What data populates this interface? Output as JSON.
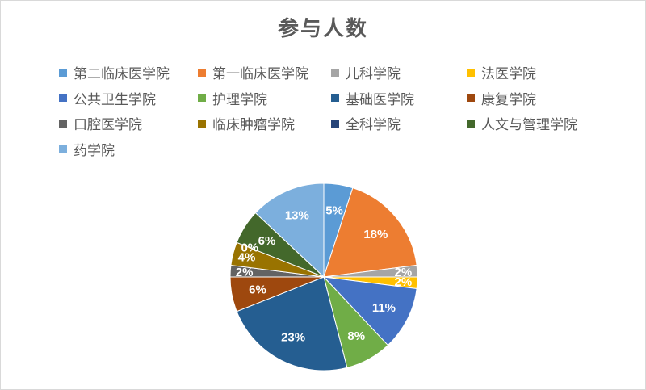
{
  "chart_data": {
    "type": "pie",
    "title": "参与人数",
    "legend_position": "top",
    "start_angle": "top, clockwise",
    "categories": [
      "第二临床医学院",
      "第一临床医学院",
      "儿科学院",
      "法医学院",
      "公共卫生学院",
      "护理学院",
      "基础医学院",
      "康复学院",
      "口腔医学院",
      "临床肿瘤学院",
      "全科学院",
      "人文与管理学院",
      "药学院"
    ],
    "values": [
      5,
      18,
      2,
      2,
      11,
      8,
      23,
      6,
      2,
      4,
      0,
      6,
      13
    ],
    "labels": [
      "5%",
      "18%",
      "2%",
      "2%",
      "11%",
      "8%",
      "23%",
      "6%",
      "2%",
      "4%",
      "0%",
      "6%",
      "13%"
    ],
    "colors": [
      "#5B9BD5",
      "#ED7D31",
      "#A5A5A5",
      "#FFC000",
      "#4472C4",
      "#70AD47",
      "#255E91",
      "#9E480E",
      "#636363",
      "#997300",
      "#264478",
      "#43682B",
      "#7CAFDD"
    ]
  }
}
